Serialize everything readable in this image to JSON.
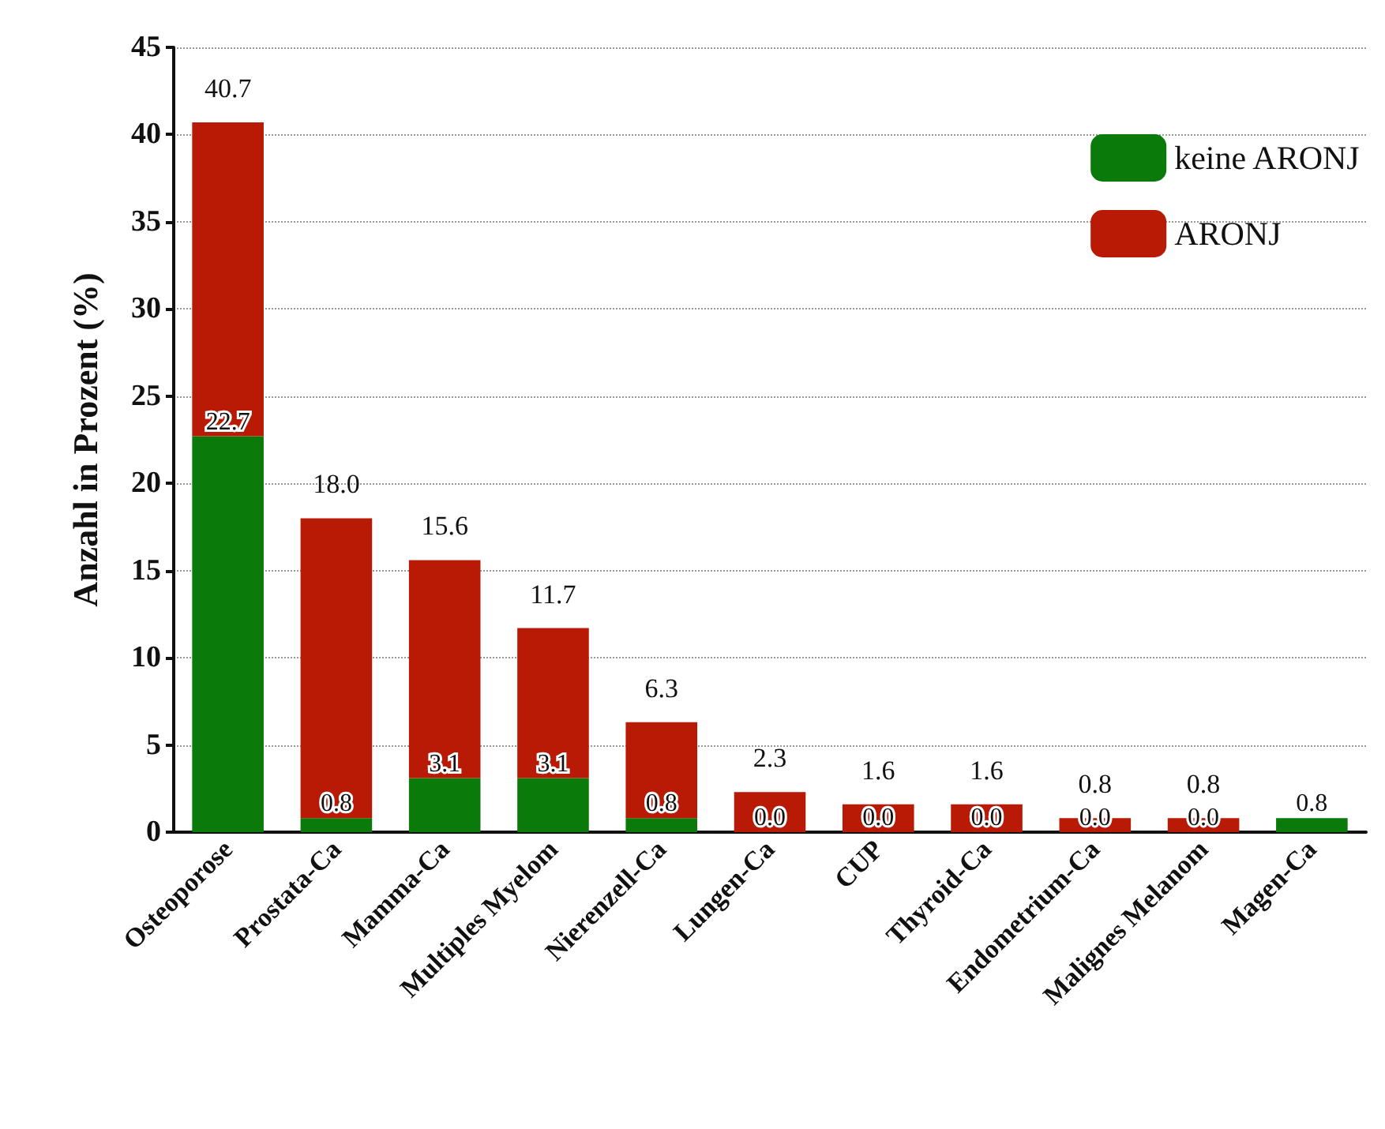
{
  "chart_data": {
    "type": "bar",
    "stacked": true,
    "ylabel": "Anzahl in Prozent (%)",
    "categories": [
      "Osteoporose",
      "Prostata-Ca",
      "Mamma-Ca",
      "Multiples Myelom",
      "Nierenzell-Ca",
      "Lungen-Ca",
      "CUP",
      "Thyroid-Ca",
      "Endometrium-Ca",
      "Malignes Melanom",
      "Magen-Ca"
    ],
    "series": [
      {
        "name": "keine ARONJ",
        "color": "#0a7a0a",
        "values": [
          22.7,
          0.8,
          3.1,
          3.1,
          0.8,
          0.0,
          0.0,
          0.0,
          0.0,
          0.0,
          0.8
        ],
        "value_labels": [
          "22.7",
          "0.8",
          "3.1",
          "3.1",
          "0.8",
          "0.0",
          "0.0",
          "0.0",
          "0.0",
          "0.0",
          "0.8"
        ]
      },
      {
        "name": "ARONJ",
        "color": "#b81a06",
        "values": [
          18.0,
          17.2,
          12.5,
          8.6,
          5.5,
          2.3,
          1.6,
          1.6,
          0.8,
          0.8,
          0.0
        ]
      }
    ],
    "totals": [
      "40.7",
      "18.0",
      "15.6",
      "11.7",
      "6.3",
      "2.3",
      "1.6",
      "1.6",
      "0.8",
      "0.8",
      null
    ],
    "ylim": [
      0,
      45
    ],
    "yticks": [
      0,
      5,
      10,
      15,
      20,
      25,
      30,
      35,
      40,
      45
    ],
    "grid": "y",
    "legend": "top right"
  }
}
